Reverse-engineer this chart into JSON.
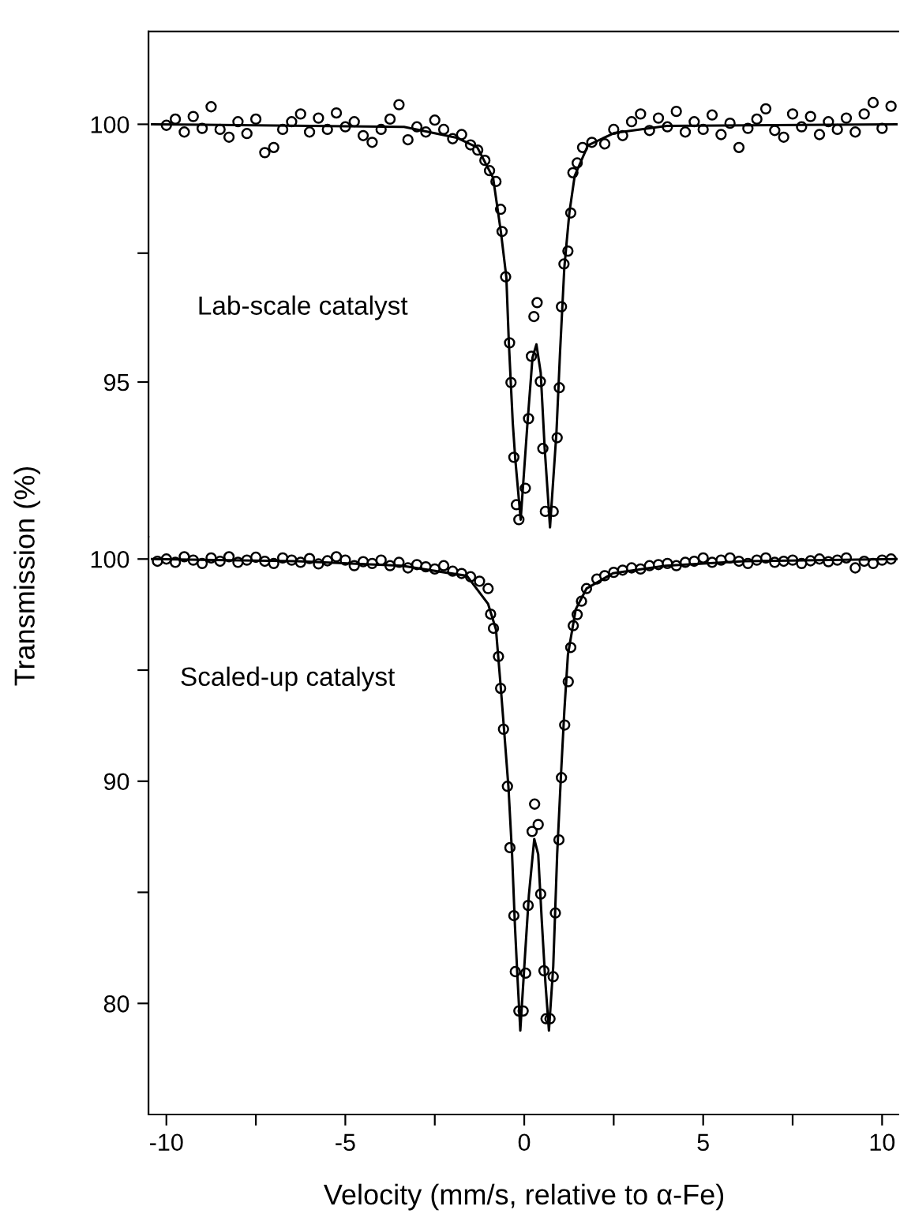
{
  "chart_data": [
    {
      "type": "scatter",
      "xlabel": "Velocity (mm/s, relative to α-Fe)",
      "ylabel": "Transmission (%)",
      "annotations": [
        "Lab-scale catalyst"
      ],
      "xlim": [
        -10.5,
        10.45
      ],
      "ylim": [
        92.0,
        101.8
      ],
      "yticks": [
        {
          "value": 95,
          "label": "95"
        },
        {
          "value": 97.5,
          "label": null
        },
        {
          "value": 100,
          "label": "100"
        }
      ],
      "tick_labels": "y",
      "marker": "circle",
      "grid": false,
      "legend": false,
      "series": [
        {
          "color": "#000000",
          "x": [
            -10.0,
            -9.75,
            -9.5,
            -9.25,
            -9.0,
            -8.75,
            -8.5,
            -8.25,
            -8.0,
            -7.75,
            -7.5,
            -7.25,
            -7.0,
            -6.75,
            -6.5,
            -6.25,
            -6.0,
            -5.75,
            -5.5,
            -5.25,
            -5.0,
            -4.75,
            -4.5,
            -4.25,
            -4.0,
            -3.75,
            -3.5,
            -3.25,
            -3.0,
            -2.75,
            -2.5,
            -2.25,
            -2.0,
            -1.75,
            -1.5,
            -1.3,
            -1.1,
            -0.97,
            -0.79,
            -0.66,
            -0.62,
            -0.52,
            -0.41,
            -0.37,
            -0.29,
            -0.22,
            -0.15,
            0.03,
            0.12,
            0.2,
            0.27,
            0.36,
            0.45,
            0.52,
            0.59,
            0.81,
            0.92,
            0.98,
            1.04,
            1.11,
            1.22,
            1.3,
            1.36,
            1.48,
            1.63,
            1.89,
            2.25,
            2.5,
            2.75,
            3.0,
            3.25,
            3.5,
            3.75,
            4.0,
            4.25,
            4.5,
            4.75,
            5.0,
            5.25,
            5.5,
            5.75,
            6.0,
            6.25,
            6.5,
            6.75,
            7.0,
            7.25,
            7.5,
            7.75,
            8.0,
            8.25,
            8.5,
            8.75,
            9.0,
            9.25,
            9.5,
            9.75,
            10.0,
            10.25
          ],
          "values": [
            99.98,
            100.1,
            99.85,
            100.15,
            99.92,
            100.34,
            99.9,
            99.75,
            100.05,
            99.82,
            100.1,
            99.45,
            99.55,
            99.9,
            100.05,
            100.2,
            99.85,
            100.12,
            99.9,
            100.22,
            99.95,
            100.05,
            99.78,
            99.65,
            99.9,
            100.1,
            100.38,
            99.7,
            99.95,
            99.85,
            100.08,
            99.9,
            99.72,
            99.8,
            99.6,
            99.5,
            99.3,
            99.1,
            98.89,
            98.35,
            97.92,
            97.04,
            95.76,
            94.99,
            93.54,
            92.62,
            92.33,
            92.94,
            94.29,
            95.5,
            96.27,
            96.54,
            95.01,
            93.71,
            92.49,
            92.49,
            93.92,
            94.89,
            96.46,
            97.29,
            97.54,
            98.28,
            99.06,
            99.25,
            99.55,
            99.65,
            99.62,
            99.9,
            99.78,
            100.05,
            100.2,
            99.88,
            100.12,
            99.95,
            100.25,
            99.85,
            100.05,
            99.9,
            100.18,
            99.8,
            100.02,
            99.55,
            99.92,
            100.1,
            100.3,
            99.88,
            99.75,
            100.2,
            99.95,
            100.15,
            99.8,
            100.05,
            99.9,
            100.12,
            99.85,
            100.2,
            100.42,
            99.92,
            100.35
          ]
        },
        {
          "type": "line",
          "color": "#000000",
          "marker": "none",
          "x": [
            -10.4,
            -3.36,
            -1.89,
            -1.31,
            -0.87,
            -0.65,
            -0.5,
            -0.43,
            -0.32,
            -0.25,
            -0.1,
            0.09,
            0.23,
            0.34,
            0.46,
            0.57,
            0.72,
            0.9,
            1.0,
            1.12,
            1.26,
            1.41,
            1.78,
            2.51,
            3.98,
            10.4
          ],
          "values": [
            100.0,
            99.95,
            99.74,
            99.55,
            98.96,
            97.9,
            97.03,
            95.76,
            94.2,
            93.5,
            92.33,
            94.2,
            95.47,
            95.73,
            95.18,
            93.73,
            92.18,
            94.02,
            95.57,
            97.22,
            98.28,
            99.0,
            99.59,
            99.83,
            99.97,
            100.0
          ]
        }
      ]
    },
    {
      "type": "scatter",
      "annotations": [
        "Scaled-up catalyst"
      ],
      "xlim": [
        -10.5,
        10.45
      ],
      "xticks": [
        -10,
        {
          "value": -7.5,
          "label": null
        },
        -5,
        {
          "value": -2.5,
          "label": null
        },
        0,
        {
          "value": 2.5,
          "label": null
        },
        5,
        {
          "value": 7.5,
          "label": null
        },
        10
      ],
      "ylim": [
        75.0,
        101.0
      ],
      "yticks": [
        80,
        {
          "value": 85,
          "label": null
        },
        90,
        {
          "value": 95,
          "label": null
        },
        100
      ],
      "marker": "circle",
      "grid": false,
      "legend": false,
      "series": [
        {
          "color": "#000000",
          "x": [
            -10.25,
            -10.0,
            -9.75,
            -9.5,
            -9.25,
            -9.0,
            -8.75,
            -8.5,
            -8.25,
            -8.0,
            -7.75,
            -7.5,
            -7.25,
            -7.0,
            -6.75,
            -6.5,
            -6.25,
            -6.0,
            -5.75,
            -5.5,
            -5.25,
            -5.0,
            -4.75,
            -4.5,
            -4.25,
            -4.0,
            -3.75,
            -3.5,
            -3.25,
            -3.0,
            -2.75,
            -2.5,
            -2.25,
            -2.0,
            -1.75,
            -1.5,
            -1.25,
            -1.01,
            -0.94,
            -0.86,
            -0.72,
            -0.66,
            -0.58,
            -0.47,
            -0.4,
            -0.29,
            -0.25,
            -0.15,
            -0.03,
            0.04,
            0.11,
            0.22,
            0.29,
            0.39,
            0.46,
            0.55,
            0.61,
            0.72,
            0.81,
            0.87,
            0.97,
            1.04,
            1.13,
            1.23,
            1.3,
            1.37,
            1.48,
            1.6,
            1.74,
            2.03,
            2.25,
            2.5,
            2.75,
            3.0,
            3.25,
            3.5,
            3.75,
            4.0,
            4.25,
            4.5,
            4.75,
            5.0,
            5.25,
            5.5,
            5.75,
            6.0,
            6.25,
            6.5,
            6.75,
            7.0,
            7.25,
            7.5,
            7.75,
            8.0,
            8.25,
            8.5,
            8.75,
            9.0,
            9.25,
            9.5,
            9.75,
            10.0,
            10.25
          ],
          "values": [
            99.9,
            100.0,
            99.85,
            100.1,
            99.95,
            99.8,
            100.05,
            99.9,
            100.1,
            99.85,
            99.95,
            100.08,
            99.9,
            99.8,
            100.05,
            99.95,
            99.85,
            100.02,
            99.78,
            99.92,
            100.1,
            99.95,
            99.7,
            99.88,
            99.8,
            99.95,
            99.7,
            99.85,
            99.6,
            99.75,
            99.65,
            99.55,
            99.7,
            99.45,
            99.35,
            99.2,
            99.0,
            98.67,
            97.52,
            96.88,
            95.61,
            94.18,
            92.34,
            89.77,
            87.01,
            83.95,
            81.43,
            79.66,
            79.66,
            81.36,
            84.41,
            87.74,
            88.97,
            88.05,
            84.92,
            81.47,
            79.31,
            79.31,
            81.2,
            84.07,
            87.36,
            90.16,
            92.53,
            94.48,
            96.02,
            97.0,
            97.5,
            98.1,
            98.67,
            99.1,
            99.25,
            99.4,
            99.5,
            99.6,
            99.55,
            99.7,
            99.75,
            99.8,
            99.7,
            99.85,
            99.9,
            100.05,
            99.85,
            99.95,
            100.05,
            99.9,
            99.8,
            99.95,
            100.05,
            99.85,
            99.9,
            99.95,
            99.8,
            99.92,
            100.0,
            99.88,
            99.95,
            100.05,
            99.6,
            99.9,
            99.8,
            99.95,
            100.0
          ]
        },
        {
          "type": "line",
          "color": "#000000",
          "marker": "none",
          "x": [
            -10.4,
            -6.35,
            -3.42,
            -1.6,
            -1.01,
            -0.79,
            -0.66,
            -0.56,
            -0.44,
            -0.34,
            -0.26,
            -0.19,
            -0.11,
            0.02,
            0.13,
            0.28,
            0.39,
            0.49,
            0.59,
            0.69,
            0.81,
            0.92,
            1.03,
            1.12,
            1.22,
            1.44,
            1.74,
            2.48,
            3.95,
            6.15,
            10.4
          ],
          "values": [
            100.0,
            99.9,
            99.7,
            99.24,
            97.98,
            96.83,
            94.3,
            92.23,
            89.7,
            86.71,
            83.5,
            81.2,
            78.78,
            82.12,
            84.88,
            87.4,
            86.71,
            83.72,
            80.97,
            78.78,
            81.66,
            86.71,
            90.39,
            93.15,
            95.68,
            97.74,
            98.67,
            99.36,
            99.7,
            99.9,
            100.0
          ]
        }
      ]
    }
  ]
}
